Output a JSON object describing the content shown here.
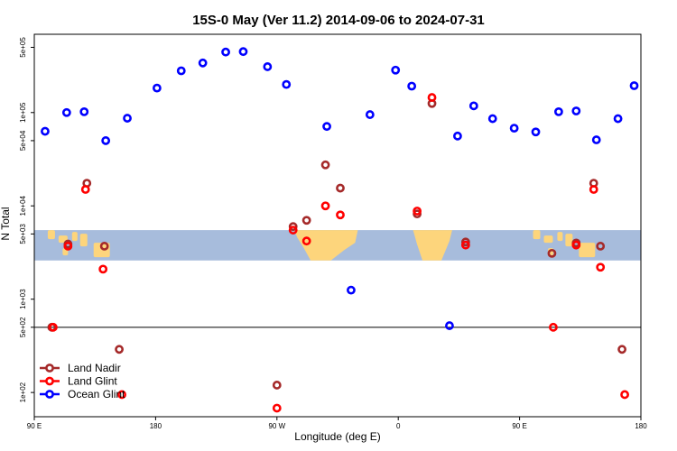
{
  "chart_data": {
    "type": "scatter",
    "title": "15S-0 May (Ver 11.2)   2014-09-06 to 2024-07-31",
    "xlabel": "Longitude (deg E)",
    "ylabel": "N Total",
    "x_scale": "linear",
    "y_scale": "log",
    "xlim": [
      90,
      540
    ],
    "ylim": [
      55,
      690000
    ],
    "x_ticks": [
      {
        "value": 90,
        "label": "90 E"
      },
      {
        "value": 180,
        "label": "180"
      },
      {
        "value": 270,
        "label": "90 W"
      },
      {
        "value": 360,
        "label": "0"
      },
      {
        "value": 450,
        "label": "90 E"
      },
      {
        "value": 540,
        "label": "180"
      }
    ],
    "y_ticks": [
      {
        "value": 100,
        "label": "1e+02"
      },
      {
        "value": 500,
        "label": "5e+02"
      },
      {
        "value": 1000,
        "label": "1e+03"
      },
      {
        "value": 5000,
        "label": "5e+03"
      },
      {
        "value": 10000,
        "label": "1e+04"
      },
      {
        "value": 50000,
        "label": "5e+04"
      },
      {
        "value": 100000,
        "label": "1e+05"
      },
      {
        "value": 500000,
        "label": "5e+05"
      }
    ],
    "reference_line": 500,
    "colors": {
      "land_nadir": "#a52a2a",
      "land_glint": "#ff0000",
      "ocean_glint": "#0000ff",
      "ocean_band": "#a7bcdc",
      "land_mass": "#fdd57c"
    },
    "series": [
      {
        "name": "Land Nadir",
        "key": "land_nadir",
        "x": [
          103,
          115,
          129,
          142,
          153,
          270,
          282,
          292,
          306,
          317,
          374,
          385,
          410,
          474,
          492,
          505,
          510,
          526
        ],
        "y": [
          500,
          3900,
          17500,
          3700,
          290,
          120,
          6000,
          7000,
          27500,
          15500,
          8200,
          125000,
          4100,
          3100,
          4000,
          17500,
          3700,
          290
        ]
      },
      {
        "name": "Land Glint",
        "key": "land_glint",
        "x": [
          104,
          115,
          128,
          141,
          155,
          270,
          282,
          292,
          306,
          317,
          374,
          385,
          410,
          475,
          492,
          505,
          510,
          528
        ],
        "y": [
          500,
          3700,
          15000,
          2100,
          95,
          68,
          5500,
          4200,
          10000,
          8000,
          8800,
          145000,
          3800,
          500,
          3800,
          15000,
          2200,
          95
        ]
      },
      {
        "name": "Ocean Glint",
        "key": "ocean_glint",
        "x": [
          98,
          114,
          127,
          143,
          159,
          181,
          199,
          215,
          232,
          245,
          263,
          277,
          307,
          325,
          339,
          358,
          370,
          398,
          404,
          416,
          430,
          446,
          462,
          479,
          492,
          507,
          523,
          535
        ],
        "y": [
          63000,
          100000,
          102000,
          50000,
          87000,
          183000,
          280000,
          340000,
          445000,
          450000,
          310000,
          200000,
          71000,
          1250,
          95000,
          285000,
          192000,
          520,
          56000,
          118000,
          86000,
          68000,
          62000,
          102000,
          104000,
          51000,
          86000,
          194000
        ]
      }
    ],
    "legend": {
      "position": "bottom-left",
      "entries": [
        "Land Nadir",
        "Land Glint",
        "Ocean Glint"
      ]
    }
  }
}
